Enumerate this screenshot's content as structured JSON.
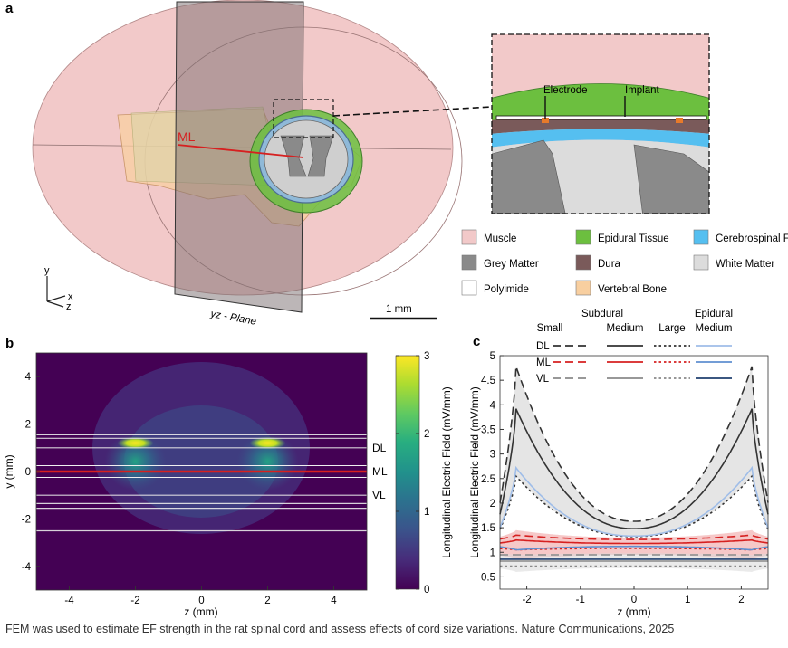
{
  "panel_labels": {
    "a": "a",
    "b": "b",
    "c": "c"
  },
  "panel_a": {
    "ml_label": "ML",
    "plane_label": "yz - Plane",
    "scale_label": "1 mm",
    "axes": {
      "y": "y",
      "x": "x",
      "z": "z"
    },
    "inset_labels": {
      "electrode": "Electrode",
      "implant": "Implant"
    },
    "legend": [
      {
        "label": "Muscle",
        "color": "#f2c9c9"
      },
      {
        "label": "Epidural Tissue",
        "color": "#6cbf3f"
      },
      {
        "label": "Cerebrospinal Fluid",
        "color": "#55bff0"
      },
      {
        "label": "Grey Matter",
        "color": "#8a8a8a"
      },
      {
        "label": "Dura",
        "color": "#7a5a5a"
      },
      {
        "label": "White Matter",
        "color": "#dcdcdc"
      },
      {
        "label": "Polyimide",
        "color": "#ffffff"
      },
      {
        "label": "Vertebral Bone",
        "color": "#f8cfa0"
      }
    ]
  },
  "chart_data": [
    {
      "type": "heatmap",
      "xlabel": "z (mm)",
      "ylabel": "y (mm)",
      "xlim": [
        -5,
        5
      ],
      "ylim": [
        -5,
        5
      ],
      "xticks": [
        "-4",
        "-2",
        "0",
        "2",
        "4"
      ],
      "yticks": [
        "4",
        "2",
        "0",
        "-2",
        "-4"
      ],
      "colorbar": {
        "label": "Longitudinal Electric Field (mV/mm)",
        "range": [
          0,
          3
        ],
        "ticks": [
          "3",
          "2",
          "1",
          "0"
        ]
      },
      "hot_spots_z": [
        -2,
        2
      ],
      "hot_spot_y": 1.2,
      "boundary_lines_y": [
        1.55,
        1.4,
        1.0,
        -1.0,
        -1.35,
        -1.55,
        -2.5
      ],
      "line_labels": [
        {
          "label": "DL",
          "y": 1.0
        },
        {
          "label": "ML",
          "y": 0.0
        },
        {
          "label": "VL",
          "y": -1.0
        }
      ]
    },
    {
      "type": "line",
      "xlabel": "z (mm)",
      "ylabel": "Longitudinal Electric Field (mV/mm)",
      "xlim": [
        -2.5,
        2.5
      ],
      "ylim": [
        0.25,
        5
      ],
      "xticks": [
        "-2",
        "-1",
        "0",
        "1",
        "2"
      ],
      "yticks": [
        "0.5",
        "1",
        "1.5",
        "2",
        "2.5",
        "3",
        "3.5",
        "4",
        "4.5",
        "5"
      ],
      "legend": {
        "group_subdural": "Subdural",
        "group_epidural": "Epidural",
        "columns": [
          "Small",
          "Medium",
          "Large",
          "Medium"
        ],
        "rows": [
          "DL",
          "ML",
          "VL"
        ]
      },
      "series": [
        {
          "name": "DL Subdural Small",
          "base": 1.63,
          "peak": 4.78,
          "style": "dashed",
          "color": "#333333"
        },
        {
          "name": "DL Subdural Medium",
          "base": 1.48,
          "peak": 3.92,
          "style": "solid",
          "color": "#333333"
        },
        {
          "name": "DL Subdural Large",
          "base": 1.32,
          "peak": 2.55,
          "style": "dotted",
          "color": "#333333"
        },
        {
          "name": "DL Epidural Medium",
          "base": 1.33,
          "peak": 2.72,
          "style": "solid",
          "color": "#9fbde8"
        },
        {
          "name": "ML Subdural Small",
          "base": 1.26,
          "peak": 1.35,
          "style": "dashed",
          "color": "#d62020"
        },
        {
          "name": "ML Subdural Medium",
          "base": 1.18,
          "peak": 1.25,
          "style": "solid",
          "color": "#d62020"
        },
        {
          "name": "ML Subdural Large",
          "base": 1.08,
          "peak": 1.05,
          "style": "dotted",
          "color": "#d62020"
        },
        {
          "name": "ML Epidural Medium",
          "base": 1.12,
          "peak": 1.05,
          "style": "solid",
          "color": "#5f8fd0"
        },
        {
          "name": "VL Subdural Small",
          "base": 0.95,
          "peak": 0.95,
          "style": "dashed",
          "color": "#8a8a8a"
        },
        {
          "name": "VL Subdural Medium",
          "base": 0.82,
          "peak": 0.82,
          "style": "solid",
          "color": "#8a8a8a"
        },
        {
          "name": "VL Subdural Large",
          "base": 0.72,
          "peak": 0.72,
          "style": "dotted",
          "color": "#8a8a8a"
        },
        {
          "name": "VL Epidural Medium",
          "base": 0.86,
          "peak": 0.86,
          "style": "solid",
          "color": "#1f3f6f"
        }
      ],
      "bands": [
        {
          "name": "DL range",
          "upper_base": 1.63,
          "upper_peak": 4.78,
          "lower_base": 1.32,
          "lower_peak": 2.55,
          "color": "#cfcfcf"
        },
        {
          "name": "ML range",
          "upper_base": 1.3,
          "upper_peak": 1.45,
          "lower_base": 0.95,
          "lower_peak": 0.85,
          "color": "#ef9a9a"
        },
        {
          "name": "VL range",
          "upper_base": 0.98,
          "upper_peak": 0.95,
          "lower_base": 0.68,
          "lower_peak": 0.6,
          "color": "#d9d9d9"
        }
      ]
    }
  ],
  "caption": "FEM was used to estimate EF strength in the rat spinal cord and assess effects of cord size variations. Nature Communications, 2025"
}
